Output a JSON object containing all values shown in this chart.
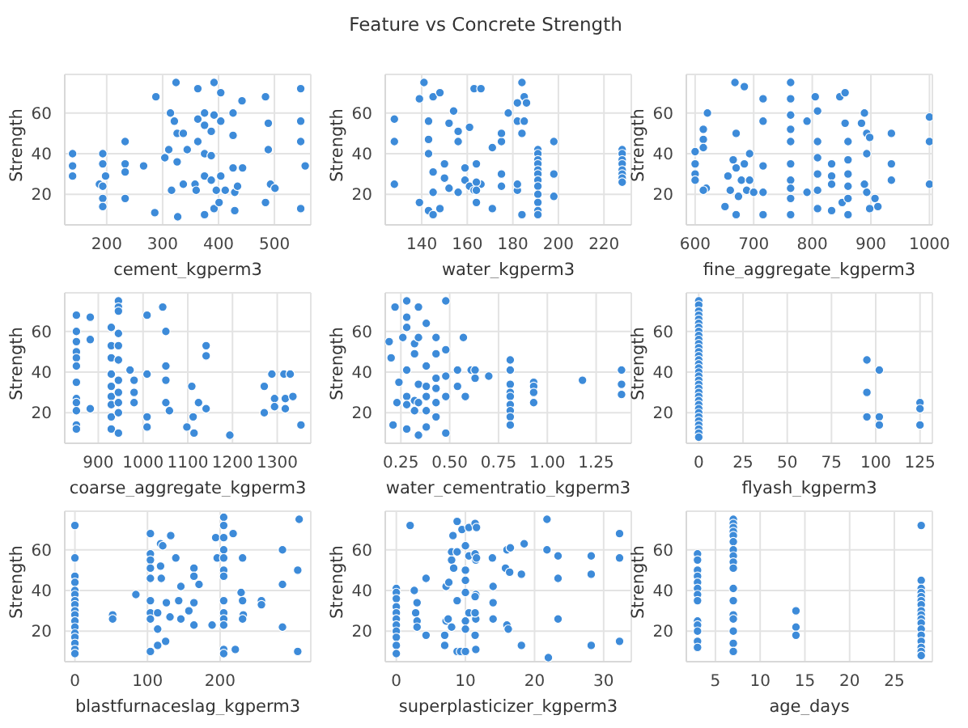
{
  "chart_data": [
    {
      "type": "scatter",
      "xlabel": "cement_kgperm3",
      "ylabel": "Strength",
      "color": "#3d8bd9",
      "marker": "circle",
      "grid": true,
      "xlim": [
        125,
        565
      ],
      "xticks": [
        200,
        300,
        400,
        500
      ],
      "ylim": [
        5,
        79
      ],
      "yticks": [
        20,
        40,
        60
      ],
      "x": [
        139,
        139,
        139,
        193,
        193,
        187,
        193,
        193,
        193,
        198,
        233,
        233,
        233,
        233,
        266,
        288,
        286,
        304,
        311,
        314,
        321,
        324,
        326,
        326,
        327,
        316,
        337,
        337,
        344,
        363,
        363,
        363,
        358,
        360,
        375,
        375,
        375,
        375,
        375,
        387,
        387,
        387,
        392,
        392,
        392,
        396,
        401,
        404,
        404,
        404,
        412,
        426,
        426,
        426,
        429,
        429,
        442,
        434,
        443,
        484,
        489,
        489,
        484,
        493,
        501,
        547,
        547,
        547,
        547,
        555
      ],
      "values": [
        40,
        34,
        29,
        40,
        35,
        25,
        24,
        18,
        14,
        29,
        46,
        35,
        31,
        18,
        34,
        68,
        11,
        38,
        42,
        60,
        56,
        75,
        50,
        36,
        9,
        22,
        50,
        25,
        42,
        72,
        57,
        46,
        25,
        22,
        60,
        54,
        40,
        29,
        10,
        51,
        39,
        27,
        75,
        59,
        13,
        22,
        16,
        70,
        56,
        29,
        22,
        60,
        49,
        33,
        21,
        12,
        66,
        24,
        33,
        68,
        55,
        42,
        16,
        25,
        23,
        72,
        56,
        46,
        13,
        34
      ]
    },
    {
      "type": "scatter",
      "title": "Feature vs Concrete Strength",
      "xlabel": "water_kgperm3",
      "ylabel": "Strength",
      "color": "#3d8bd9",
      "marker": "circle",
      "grid": true,
      "xlim": [
        124,
        232
      ],
      "xticks": [
        140,
        160,
        180,
        200,
        220
      ],
      "ylim": [
        5,
        79
      ],
      "yticks": [
        20,
        40,
        60
      ],
      "x": [
        128,
        128,
        128,
        139,
        141,
        143,
        143,
        143,
        145,
        145,
        139,
        143,
        145,
        148,
        145,
        148,
        150,
        150,
        152,
        152,
        154,
        156,
        156,
        156,
        159,
        159,
        161,
        161,
        163,
        166,
        163,
        166,
        164,
        164,
        164,
        164,
        171,
        171,
        175,
        175,
        175,
        175,
        178,
        182,
        182,
        184,
        185,
        186,
        182,
        185,
        184,
        182,
        184,
        191,
        191,
        191,
        191,
        191,
        191,
        191,
        191,
        191,
        191,
        191,
        191,
        198,
        198,
        198,
        228,
        228,
        228,
        228,
        228,
        228,
        228,
        228
      ],
      "values": [
        57,
        46,
        25,
        67,
        75,
        56,
        47,
        40,
        31,
        21,
        16,
        12,
        10,
        13,
        68,
        70,
        35,
        28,
        55,
        23,
        61,
        51,
        46,
        21,
        27,
        33,
        24,
        53,
        72,
        72,
        22,
        25,
        35,
        26,
        22,
        16,
        43,
        13,
        46,
        30,
        24,
        50,
        60,
        22,
        65,
        75,
        68,
        65,
        56,
        56,
        50,
        25,
        10,
        42,
        40,
        37,
        35,
        32,
        30,
        27,
        24,
        20,
        16,
        12,
        10,
        46,
        30,
        19,
        42,
        40,
        37,
        35,
        32,
        30,
        28,
        26
      ]
    },
    {
      "type": "scatter",
      "xlabel": "fine_aggregate_kgperm3",
      "ylabel": "Strength",
      "color": "#3d8bd9",
      "marker": "circle",
      "grid": true,
      "xlim": [
        585,
        1005
      ],
      "xticks": [
        600,
        700,
        800,
        900,
        1000
      ],
      "ylim": [
        5,
        79
      ],
      "yticks": [
        20,
        40,
        60
      ],
      "x": [
        600,
        600,
        600,
        600,
        614,
        614,
        614,
        619,
        621,
        614,
        651,
        656,
        660,
        665,
        668,
        670,
        670,
        670,
        674,
        679,
        684,
        684,
        688,
        693,
        693,
        700,
        716,
        716,
        716,
        716,
        716,
        763,
        763,
        763,
        763,
        763,
        763,
        763,
        763,
        763,
        763,
        791,
        791,
        805,
        809,
        809,
        809,
        809,
        809,
        809,
        833,
        833,
        833,
        833,
        847,
        856,
        851,
        856,
        861,
        861,
        861,
        861,
        861,
        861,
        884,
        889,
        893,
        898,
        893,
        889,
        893,
        898,
        907,
        912,
        935,
        935,
        935,
        1000,
        1000,
        1000
      ],
      "values": [
        41,
        35,
        30,
        27,
        52,
        47,
        43,
        23,
        60,
        22,
        14,
        29,
        22,
        37,
        75,
        50,
        33,
        10,
        19,
        27,
        73,
        35,
        22,
        27,
        40,
        21,
        67,
        56,
        34,
        21,
        10,
        75,
        67,
        59,
        52,
        46,
        35,
        27,
        23,
        18,
        10,
        56,
        21,
        68,
        61,
        46,
        38,
        30,
        22,
        13,
        35,
        29,
        25,
        12,
        68,
        70,
        16,
        55,
        46,
        37,
        30,
        24,
        18,
        10,
        55,
        60,
        50,
        48,
        40,
        25,
        21,
        13,
        18,
        14,
        50,
        35,
        27,
        58,
        46,
        25
      ]
    },
    {
      "type": "scatter",
      "xlabel": "coarse_aggregate_kgperm3",
      "ylabel": "Strength",
      "color": "#3d8bd9",
      "marker": "circle",
      "grid": true,
      "xlim": [
        825,
        1375
      ],
      "xticks": [
        900,
        1000,
        1100,
        1200,
        1300
      ],
      "ylim": [
        5,
        79
      ],
      "yticks": [
        20,
        40,
        60
      ],
      "x": [
        851,
        851,
        851,
        851,
        851,
        851,
        851,
        851,
        851,
        851,
        851,
        851,
        882,
        882,
        882,
        929,
        929,
        929,
        929,
        929,
        929,
        929,
        929,
        929,
        945,
        945,
        945,
        945,
        945,
        945,
        945,
        945,
        945,
        945,
        945,
        971,
        980,
        980,
        980,
        1009,
        1009,
        1009,
        1009,
        1044,
        1051,
        1051,
        1051,
        1051,
        1059,
        1098,
        1109,
        1112,
        1114,
        1124,
        1141,
        1141,
        1141,
        1194,
        1271,
        1271,
        1288,
        1294,
        1294,
        1315,
        1318,
        1318,
        1329,
        1335,
        1353
      ],
      "values": [
        68,
        60,
        55,
        50,
        47,
        43,
        35,
        27,
        25,
        21,
        14,
        12,
        67,
        56,
        22,
        62,
        53,
        47,
        39,
        33,
        28,
        24,
        18,
        12,
        75,
        72,
        70,
        59,
        53,
        46,
        36,
        30,
        25,
        20,
        10,
        41,
        36,
        30,
        25,
        68,
        39,
        18,
        13,
        72,
        60,
        43,
        36,
        25,
        21,
        13,
        33,
        18,
        10,
        25,
        53,
        48,
        22,
        9,
        33,
        20,
        39,
        27,
        23,
        39,
        27,
        22,
        39,
        28,
        14
      ]
    },
    {
      "type": "scatter",
      "xlabel": "water_cementratio_kgperm3",
      "ylabel": "Strength",
      "color": "#3d8bd9",
      "marker": "circle",
      "grid": true,
      "xlim": [
        0.17,
        1.43
      ],
      "xticks": [
        0.25,
        {
          "value": 0.5,
          "label": "0.50"
        },
        0.75,
        {
          "value": 1,
          "label": "1.00"
        },
        1.25
      ],
      "ylim": [
        5,
        79
      ],
      "yticks": [
        20,
        40,
        60
      ],
      "x": [
        0.19,
        0.21,
        0.2,
        0.22,
        0.23,
        0.24,
        0.26,
        0.28,
        0.28,
        0.28,
        0.28,
        0.28,
        0.28,
        0.28,
        0.32,
        0.32,
        0.32,
        0.32,
        0.34,
        0.34,
        0.34,
        0.34,
        0.34,
        0.38,
        0.38,
        0.38,
        0.38,
        0.38,
        0.38,
        0.43,
        0.43,
        0.43,
        0.43,
        0.43,
        0.43,
        0.48,
        0.48,
        0.48,
        0.48,
        0.48,
        0.54,
        0.54,
        0.57,
        0.58,
        0.61,
        0.63,
        0.63,
        0.7,
        0.81,
        0.81,
        0.81,
        0.81,
        0.81,
        0.81,
        0.81,
        0.81,
        0.81,
        0.93,
        0.93,
        0.93,
        0.93,
        1.18,
        1.38,
        1.38,
        1.38
      ],
      "values": [
        55,
        14,
        47,
        72,
        25,
        35,
        57,
        75,
        67,
        62,
        41,
        28,
        24,
        12,
        54,
        49,
        26,
        21,
        72,
        57,
        34,
        25,
        9,
        64,
        43,
        33,
        28,
        21,
        13,
        57,
        49,
        37,
        32,
        25,
        18,
        75,
        51,
        38,
        28,
        10,
        41,
        33,
        57,
        28,
        41,
        41,
        37,
        38,
        46,
        41,
        34,
        30,
        28,
        24,
        21,
        18,
        14,
        35,
        33,
        30,
        25,
        36,
        41,
        34,
        29
      ]
    },
    {
      "type": "scatter",
      "xlabel": "flyash_kgperm3",
      "ylabel": "Strength",
      "color": "#3d8bd9",
      "marker": "circle",
      "grid": true,
      "xlim": [
        -7,
        132
      ],
      "xticks": [
        0,
        25,
        50,
        75,
        100,
        125
      ],
      "ylim": [
        5,
        79
      ],
      "yticks": [
        20,
        40,
        60
      ],
      "x": [
        0,
        0,
        0,
        0,
        0,
        0,
        0,
        0,
        0,
        0,
        0,
        0,
        0,
        0,
        0,
        0,
        0,
        0,
        0,
        0,
        0,
        0,
        0,
        0,
        0,
        0,
        0,
        0,
        0,
        0,
        0,
        0,
        0,
        0,
        95,
        95,
        95,
        102,
        102,
        102,
        125,
        125,
        125
      ],
      "values": [
        75,
        73,
        70,
        68,
        66,
        64,
        62,
        60,
        58,
        56,
        54,
        52,
        50,
        48,
        46,
        44,
        42,
        40,
        38,
        36,
        34,
        32,
        30,
        28,
        26,
        24,
        22,
        20,
        18,
        16,
        14,
        12,
        10,
        8,
        46,
        30,
        18,
        41,
        18,
        14,
        25,
        22,
        14
      ]
    },
    {
      "type": "scatter",
      "xlabel": "blastfurnaceslag_kgperm3",
      "ylabel": "Strength",
      "color": "#3d8bd9",
      "marker": "circle",
      "grid": true,
      "xlim": [
        -14,
        325
      ],
      "xticks": [
        0,
        100,
        200
      ],
      "ylim": [
        5,
        79
      ],
      "yticks": [
        20,
        40,
        60
      ],
      "x": [
        0,
        0,
        0,
        0,
        0,
        0,
        0,
        0,
        0,
        0,
        0,
        0,
        0,
        0,
        0,
        0,
        0,
        52,
        52,
        84,
        104,
        104,
        104,
        104,
        104,
        104,
        104,
        104,
        104,
        114,
        114,
        114,
        118,
        118,
        121,
        119,
        125,
        126,
        131,
        132,
        139,
        146,
        146,
        143,
        164,
        157,
        164,
        164,
        164,
        171,
        194,
        189,
        196,
        205,
        205,
        205,
        205,
        205,
        205,
        205,
        205,
        205,
        205,
        205,
        205,
        205,
        218,
        221,
        229,
        231,
        232,
        231,
        231,
        257,
        257,
        286,
        286,
        286,
        309,
        307,
        307
      ],
      "values": [
        72,
        56,
        47,
        44,
        40,
        38,
        35,
        33,
        30,
        28,
        25,
        22,
        19,
        17,
        14,
        11,
        9,
        28,
        26,
        38,
        68,
        58,
        55,
        51,
        46,
        35,
        29,
        26,
        10,
        29,
        21,
        13,
        63,
        52,
        62,
        46,
        15,
        34,
        27,
        67,
        56,
        42,
        26,
        35,
        34,
        30,
        51,
        47,
        23,
        43,
        66,
        23,
        56,
        76,
        72,
        66,
        60,
        56,
        50,
        47,
        35,
        29,
        26,
        23,
        11,
        9,
        68,
        11,
        39,
        35,
        28,
        26,
        56,
        35,
        33,
        60,
        43,
        22,
        75,
        50,
        10
      ]
    },
    {
      "type": "scatter",
      "xlabel": "superplasticizer_kgperm3",
      "ylabel": "Strength",
      "color": "#3d8bd9",
      "marker": "circle",
      "grid": true,
      "xlim": [
        -1.6,
        34
      ],
      "xticks": [
        0,
        10,
        20,
        30
      ],
      "ylim": [
        5,
        79
      ],
      "yticks": [
        20,
        40,
        60
      ],
      "x": [
        0,
        0,
        0,
        0,
        0,
        0,
        0,
        0,
        0,
        0,
        0,
        2,
        2.6,
        2.8,
        3,
        3,
        3,
        4.3,
        4.3,
        7,
        7,
        7.2,
        7.2,
        7.6,
        7.5,
        8,
        8,
        8,
        8.2,
        8.3,
        8.8,
        8.8,
        8.8,
        8.8,
        9.3,
        9.5,
        10,
        10,
        10,
        10,
        10,
        10,
        10,
        10.5,
        10.5,
        10.5,
        11.4,
        11.4,
        11.5,
        11.5,
        11.5,
        11.6,
        11.6,
        11.4,
        11.4,
        11.4,
        11.5,
        13.9,
        14,
        14,
        14,
        15.8,
        16,
        16,
        16.2,
        16.4,
        16.5,
        18.1,
        18.1,
        18.5,
        21.8,
        21.8,
        22,
        23.4,
        23.4,
        23.4,
        28.2,
        28.2,
        28.2,
        32.3,
        32.3,
        32.3
      ],
      "values": [
        41,
        39,
        36,
        32,
        29,
        26,
        23,
        20,
        17,
        13,
        9,
        72,
        40,
        29,
        34,
        25,
        22,
        46,
        18,
        18,
        13,
        42,
        25,
        44,
        26,
        59,
        55,
        22,
        67,
        51,
        59,
        74,
        35,
        10,
        10,
        70,
        62,
        50,
        45,
        25,
        21,
        39,
        10,
        57,
        71,
        29,
        73,
        58,
        55,
        38,
        26,
        71,
        56,
        37,
        29,
        18,
        11,
        56,
        34,
        26,
        42,
        51,
        60,
        23,
        21,
        49,
        61,
        48,
        13,
        63,
        75,
        60,
        7,
        57,
        46,
        26,
        57,
        48,
        13,
        68,
        56,
        15
      ]
    },
    {
      "type": "scatter",
      "xlabel": "age_days",
      "ylabel": "Strength",
      "color": "#3d8bd9",
      "marker": "circle",
      "grid": true,
      "xlim": [
        1.75,
        29.25
      ],
      "xticks": [
        5,
        10,
        15,
        20,
        25
      ],
      "ylim": [
        5,
        79
      ],
      "yticks": [
        20,
        40,
        60
      ],
      "x": [
        3,
        3,
        3,
        3,
        3,
        3,
        3,
        3,
        3,
        3,
        3,
        3,
        3,
        7,
        7,
        7,
        7,
        7,
        7,
        7,
        7,
        7,
        7,
        7,
        7,
        7,
        7,
        7,
        7,
        7,
        14,
        14,
        14,
        28,
        28,
        28,
        28,
        28,
        28,
        28,
        28,
        28,
        28,
        28,
        28,
        28,
        28,
        28,
        28,
        28
      ],
      "values": [
        58,
        55,
        50,
        47,
        44,
        41,
        38,
        35,
        25,
        23,
        20,
        15,
        12,
        75,
        73,
        71,
        69,
        67,
        64,
        60,
        57,
        54,
        51,
        41,
        35,
        28,
        26,
        20,
        14,
        10,
        30,
        22,
        18,
        72,
        45,
        41,
        39,
        37,
        35,
        33,
        30,
        28,
        26,
        24,
        21,
        18,
        15,
        12,
        10,
        8
      ]
    }
  ]
}
